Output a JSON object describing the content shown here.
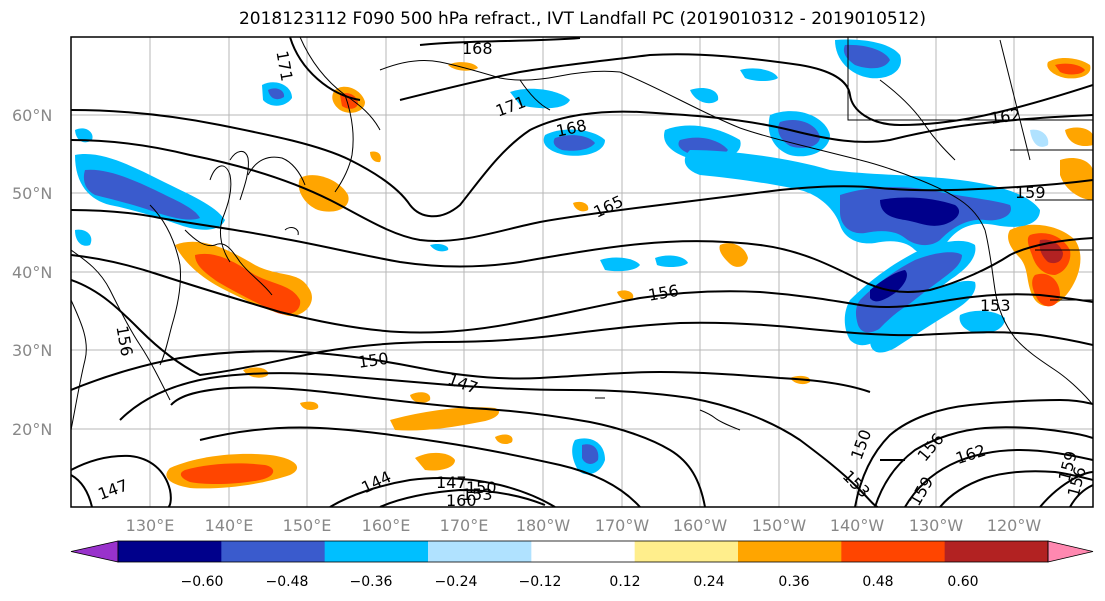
{
  "title": "2018123112 F090 500 hPa refract., IVT Landfall PC (2019010312 - 2019010512)",
  "lat_labels": [
    "60°N",
    "50°N",
    "40°N",
    "30°N",
    "20°N"
  ],
  "lon_labels": [
    "130°E",
    "140°E",
    "150°E",
    "160°E",
    "170°E",
    "180°W",
    "170°W",
    "160°W",
    "150°W",
    "140°W",
    "130°W",
    "120°W"
  ],
  "contour_labels": [
    "168",
    "171",
    "171",
    "168",
    "165",
    "162",
    "159",
    "156",
    "153",
    "150",
    "147",
    "144",
    "147",
    "150",
    "153",
    "156",
    "159",
    "162",
    "150",
    "153",
    "156",
    "159",
    "156",
    "156",
    "147",
    "160"
  ],
  "colorbar": {
    "colors": [
      "#9932cc",
      "#00008b",
      "#3a5bcd",
      "#00bfff",
      "#b0e2ff",
      "#ffffff",
      "#ffee8c",
      "#ffa500",
      "#ff4500",
      "#b22222",
      "#ff88b0"
    ],
    "tick_labels": [
      "−0.60",
      "−0.48",
      "−0.36",
      "−0.24",
      "−0.12",
      "0.12",
      "0.24",
      "0.36",
      "0.48",
      "0.60"
    ]
  }
}
